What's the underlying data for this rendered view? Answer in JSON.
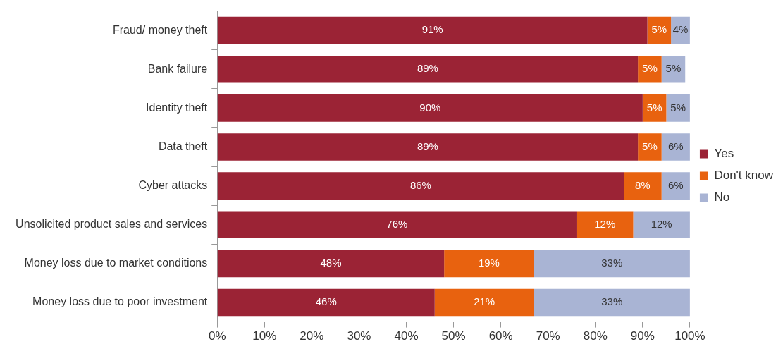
{
  "chart_data": {
    "type": "bar",
    "orientation": "horizontal",
    "stacked": true,
    "categories": [
      "Fraud/ money theft",
      "Bank failure",
      "Identity theft",
      "Data theft",
      "Cyber attacks",
      "Unsolicited product sales and services",
      "Money loss due to market conditions",
      "Money loss due to poor investment"
    ],
    "series": [
      {
        "name": "Yes",
        "color": "#9b2335",
        "values": [
          91,
          89,
          90,
          89,
          86,
          76,
          48,
          46
        ],
        "value_labels": [
          "91%",
          "89%",
          "90%",
          "89%",
          "86%",
          "76%",
          "48%",
          "46%"
        ]
      },
      {
        "name": "Don't know",
        "color": "#e8620f",
        "values": [
          5,
          5,
          5,
          5,
          8,
          12,
          19,
          21
        ],
        "value_labels": [
          "5%",
          "5%",
          "5%",
          "5%",
          "8%",
          "12%",
          "19%",
          "21%"
        ]
      },
      {
        "name": "No",
        "color": "#a9b4d4",
        "values": [
          4,
          5,
          5,
          6,
          6,
          12,
          33,
          33
        ],
        "value_labels": [
          "4%",
          "5%",
          "5%",
          "6%",
          "6%",
          "12%",
          "33%",
          "33%"
        ]
      }
    ],
    "xlim": [
      0,
      100
    ],
    "xticks": [
      {
        "value": 0,
        "label": "0%"
      },
      {
        "value": 10,
        "label": "10%"
      },
      {
        "value": 20,
        "label": "20%"
      },
      {
        "value": 30,
        "label": "30%"
      },
      {
        "value": 40,
        "label": "40%"
      },
      {
        "value": 50,
        "label": "50%"
      },
      {
        "value": 60,
        "label": "60%"
      },
      {
        "value": 70,
        "label": "70%"
      },
      {
        "value": 80,
        "label": "80%"
      },
      {
        "value": 90,
        "label": "90%"
      },
      {
        "value": 100,
        "label": "100%"
      }
    ],
    "grid": false,
    "legend": "right"
  }
}
